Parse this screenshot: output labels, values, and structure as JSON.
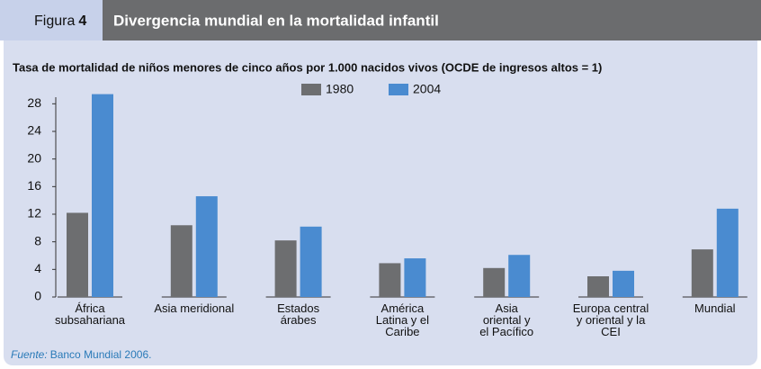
{
  "chart_data": {
    "type": "bar",
    "figure_label": "Figura",
    "figure_number": "4",
    "title": "Divergencia mundial en la mortalidad infantil",
    "subtitle": "Tasa de mortalidad de niños menores de cinco años por 1.000 nacidos vivos (OCDE de ingresos altos = 1)",
    "categories": [
      "África\nsubsahariana",
      "Asia meridional",
      "Estados\nárabes",
      "América\nLatina y el\nCaribe",
      "Asia\noriental y\nel Pacífico",
      "Europa central\ny oriental y la\nCEI",
      "Mundial"
    ],
    "series": [
      {
        "name": "1980",
        "color": "#6d6e70",
        "values": [
          12.2,
          10.4,
          8.2,
          4.9,
          4.2,
          3.0,
          6.9
        ]
      },
      {
        "name": "2004",
        "color": "#4a8bd0",
        "values": [
          29.4,
          14.6,
          10.2,
          5.6,
          6.1,
          3.8,
          12.8
        ]
      }
    ],
    "ylim": [
      0,
      30
    ],
    "yticks": [
      0,
      4,
      8,
      12,
      16,
      20,
      24,
      28
    ],
    "legend": "top",
    "source_label": "Fuente:",
    "source": "Banco Mundial 2006."
  }
}
